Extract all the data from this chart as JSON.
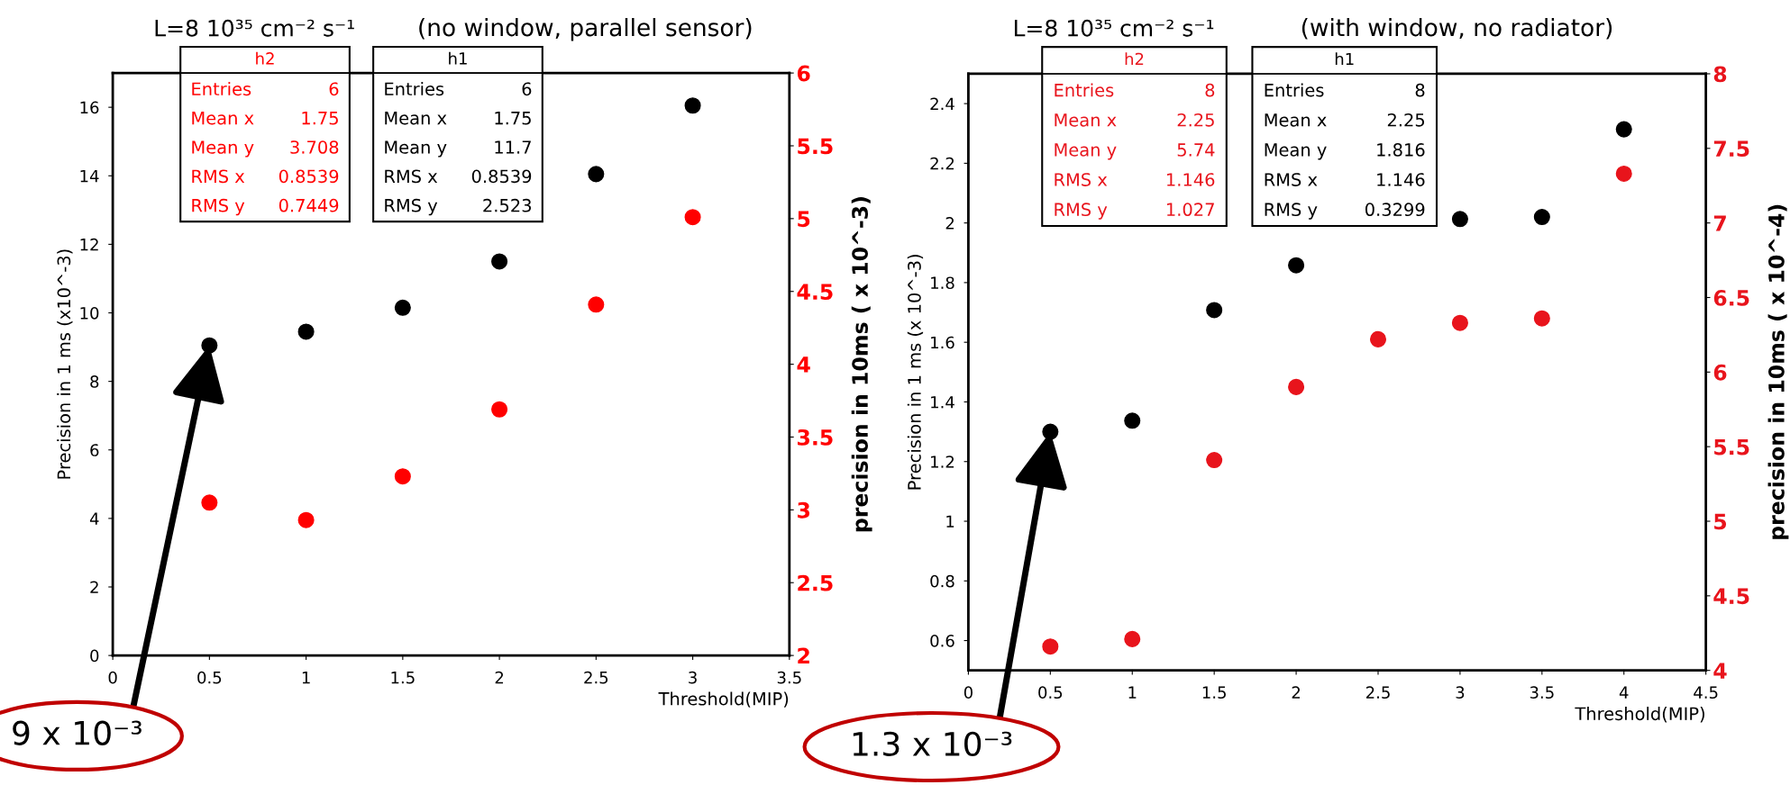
{
  "chart_data": [
    {
      "type": "scatter",
      "title": "L=8 10³⁵ cm⁻² s⁻¹",
      "subtitle": "(no window, parallel sensor)",
      "xlabel": "Threshold(MIP)",
      "ylabel": "Precision in 1 ms (x10^-3)",
      "y2label": "precision in 10ms ( x 10^-3)",
      "x": [
        0.5,
        1,
        1.5,
        2,
        2.5,
        3
      ],
      "series": [
        {
          "name": "h2",
          "color": "#ff0000",
          "axis": "y2",
          "values": [
            3.05,
            2.93,
            3.23,
            3.69,
            4.41,
            5.01
          ]
        },
        {
          "name": "h1",
          "color": "#000000",
          "values": [
            9.05,
            9.45,
            10.15,
            11.5,
            14.05,
            16.05
          ]
        }
      ],
      "xlim": [
        0,
        3.5
      ],
      "xticks": [
        0,
        0.5,
        1,
        1.5,
        2,
        2.5,
        3,
        3.5
      ],
      "ylim": [
        0,
        17
      ],
      "yticks": [
        0,
        2,
        4,
        6,
        8,
        10,
        12,
        14,
        16
      ],
      "y2lim": [
        2,
        6
      ],
      "y2ticks": [
        2,
        2.5,
        3,
        3.5,
        4,
        4.5,
        5,
        5.5,
        6
      ],
      "annotations": [
        "Entries\t6\nMean x\t1.75\nMean y\t3.708\nRMS x\t0.8539\nRMS y\t0.7449",
        "Entries\t6\nMean x\t1.75\nMean y\t11.7\nRMS x\t0.8539\nRMS y\t2.523",
        {
          "text": "9 x 10⁻³",
          "x": 0.5,
          "y": 9.05
        }
      ],
      "grid": false,
      "legend": false,
      "marker": "circle"
    },
    {
      "type": "scatter",
      "title": "L=8 10³⁵ cm⁻² s⁻¹",
      "subtitle": "(with window, no radiator)",
      "xlabel": "Threshold(MIP)",
      "ylabel": "Precision in 1 ms (x 10^-3)",
      "y2label": "precision in 10ms ( x 10^-4)",
      "x": [
        0.5,
        1,
        1.5,
        2,
        2.5,
        3,
        3.5,
        4
      ],
      "series": [
        {
          "name": "h2",
          "color": "#e8141c",
          "axis": "y2",
          "values": [
            4.16,
            4.21,
            5.41,
            5.9,
            6.22,
            6.33,
            6.36,
            7.33
          ]
        },
        {
          "name": "h1",
          "color": "#000000",
          "values": [
            1.3,
            1.337,
            1.708,
            1.858,
            null,
            2.013,
            2.02,
            2.314
          ]
        }
      ],
      "xlim": [
        0,
        4.5
      ],
      "xticks": [
        0,
        0.5,
        1,
        1.5,
        2,
        2.5,
        3,
        3.5,
        4,
        4.5
      ],
      "ylim": [
        0.5,
        2.5
      ],
      "yticks": [
        {
          "value": 0.6,
          "label": "0.6"
        },
        {
          "value": 0.8,
          "label": "0.8"
        },
        1,
        {
          "value": 1.2,
          "label": "1.2"
        },
        {
          "value": 1.4,
          "label": "1.4"
        },
        {
          "value": 1.6,
          "label": "1.6"
        },
        {
          "value": 1.8,
          "label": "1.8"
        },
        2,
        {
          "value": 2.2,
          "label": "2.2"
        },
        {
          "value": 2.4,
          "label": "2.4"
        }
      ],
      "y2lim": [
        4,
        8
      ],
      "y2ticks": [
        4,
        4.5,
        5,
        5.5,
        6,
        6.5,
        7,
        7.5,
        8
      ],
      "annotations": [
        "Entries\t8\nMean x\t2.25\nMean y\t5.74\nRMS x\t1.146\nRMS y\t1.027",
        "Entries\t8\nMean x\t2.25\nMean y\t1.816\nRMS x\t1.146\nRMS y\t0.3299",
        {
          "text": "1.3 x 10⁻³",
          "x": 0.5,
          "y": 1.3
        }
      ],
      "grid": false,
      "legend": false,
      "marker": "circle"
    }
  ]
}
